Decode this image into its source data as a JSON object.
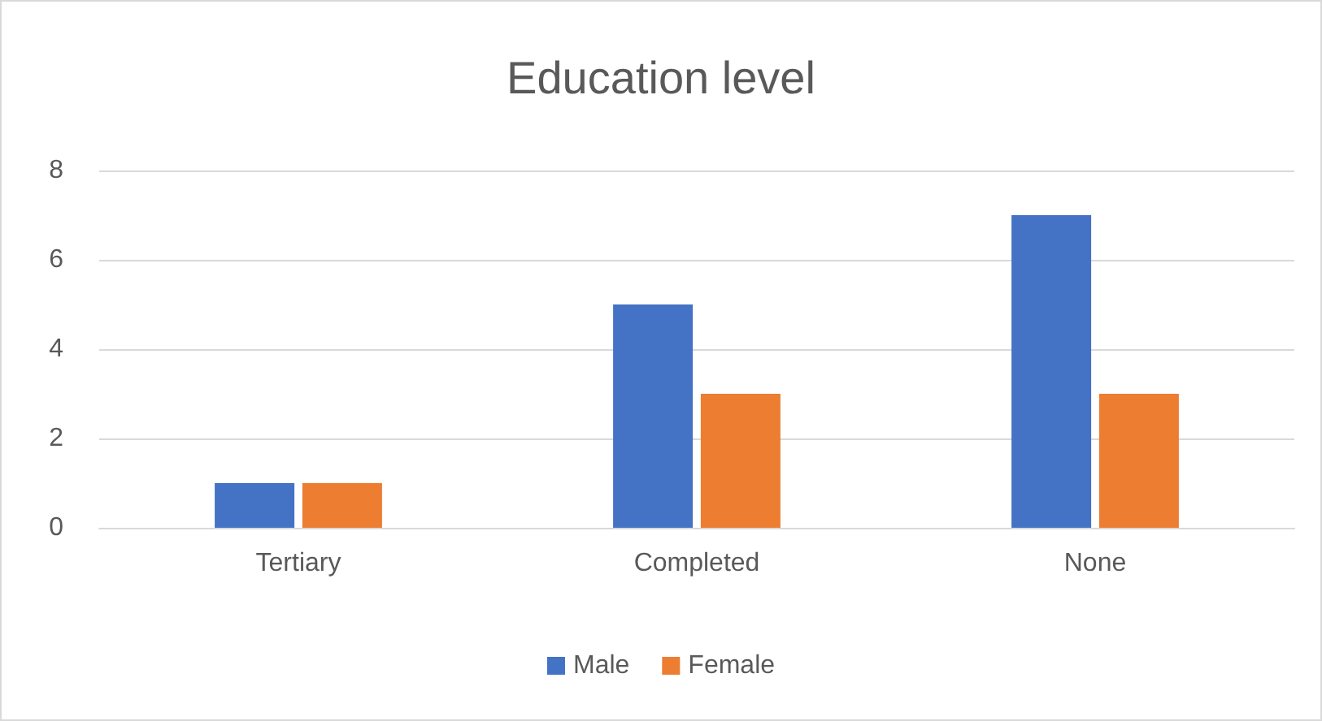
{
  "chart_data": {
    "type": "bar",
    "title": "Education level",
    "categories": [
      "Tertiary",
      "Completed",
      "None"
    ],
    "series": [
      {
        "name": "Male",
        "color": "#4472c4",
        "values": [
          1,
          5,
          7
        ]
      },
      {
        "name": "Female",
        "color": "#ed7d31",
        "values": [
          1,
          3,
          3
        ]
      }
    ],
    "ylim": [
      0,
      8
    ],
    "yticks": [
      0,
      2,
      4,
      6,
      8
    ],
    "grid": "y",
    "legend": "bottom"
  }
}
